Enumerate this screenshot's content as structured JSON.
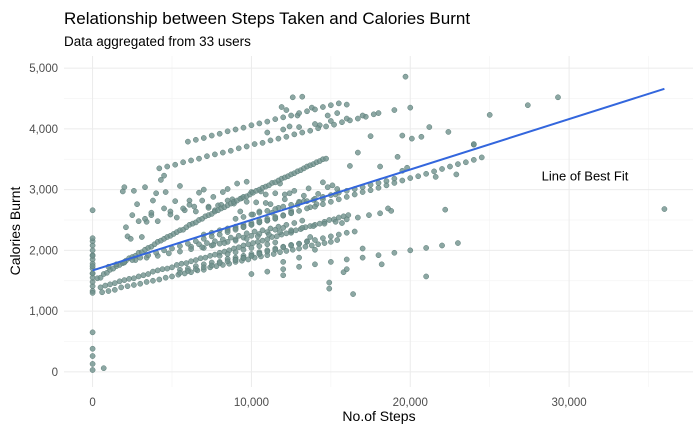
{
  "chart_data": {
    "type": "scatter",
    "title": "Relationship between Steps Taken and Calories Burnt",
    "subtitle": "Data aggregated from 33 users",
    "xlabel": "No.of Steps",
    "ylabel": "Calories Burnt",
    "xlim": [
      -1800,
      37800
    ],
    "ylim": [
      -250,
      5200
    ],
    "x_ticks": [
      0,
      10000,
      20000,
      30000
    ],
    "x_tick_labels": [
      "0",
      "10,000",
      "20,000",
      "30,000"
    ],
    "y_ticks": [
      0,
      1000,
      2000,
      3000,
      4000,
      5000
    ],
    "y_tick_labels": [
      "0",
      "1,000",
      "2,000",
      "3,000",
      "4,000",
      "5,000"
    ],
    "grid": true,
    "point_color": "#6f918c",
    "line_color": "#3366dd",
    "trend_line": {
      "x": [
        0,
        36000
      ],
      "y": [
        1670,
        4660
      ]
    },
    "annotation": {
      "text": "Line of Best Fit",
      "x": 31000,
      "y": 3150
    },
    "points_x": [
      0,
      0,
      0,
      0,
      0,
      0,
      0,
      0,
      0,
      0,
      0,
      0,
      0,
      0,
      0,
      0,
      0,
      0,
      0,
      0,
      0,
      0,
      0,
      700,
      19700,
      36000,
      27400,
      29300,
      15300,
      16200,
      16700,
      17500,
      18100,
      18600,
      19200,
      19800,
      20700,
      21600,
      22200,
      22900,
      24000,
      25000,
      20100,
      21200,
      22400,
      13200,
      13800,
      14300,
      14800,
      15400,
      16000,
      11900,
      12200,
      12600,
      12900,
      12400,
      3300,
      3800,
      4500,
      1900,
      2000,
      2200,
      2400,
      2600,
      2800,
      3100,
      3400,
      3700,
      4000,
      4300,
      4600,
      4900,
      5200,
      5500,
      5800,
      6100,
      6400,
      6700,
      7000,
      7300,
      7600,
      7900,
      8200,
      8500,
      8800,
      9100,
      9400,
      9700,
      10000,
      10300,
      10600,
      10900,
      11200,
      11500,
      11800,
      12100,
      12400,
      12700,
      13000,
      13300,
      13600,
      13900,
      14200,
      14500,
      14800,
      15100,
      15400,
      15700,
      2100,
      2500,
      2900,
      3300,
      3700,
      4100,
      4500,
      4900,
      5300,
      5700,
      6100,
      6500,
      6900,
      7300,
      7700,
      8100,
      8500,
      8900,
      9300,
      9700,
      10100,
      10500,
      10900,
      11300,
      11700,
      12100,
      12500,
      12900,
      13300,
      13700,
      14100,
      14500,
      14900,
      300,
      500,
      700,
      900,
      1100,
      1300,
      1500,
      1700,
      1900,
      2100,
      2300,
      2500,
      2700,
      2900,
      3100,
      3300,
      3500,
      3700,
      3900,
      4100,
      4300,
      4500,
      4700,
      4900,
      5100,
      5300,
      5500,
      5700,
      5900,
      6100,
      6300,
      6500,
      6700,
      6900,
      7100,
      7300,
      7500,
      7700,
      7900,
      8100,
      8300,
      8500,
      8700,
      8900,
      9100,
      9300,
      9500,
      9700,
      9900,
      10100,
      10300,
      10500,
      10700,
      10900,
      11100,
      11300,
      11500,
      11700,
      11900,
      12100,
      12300,
      12500,
      12700,
      12900,
      13100,
      13300,
      13500,
      13700,
      13900,
      14100,
      14300,
      14500,
      14700,
      14900,
      500,
      800,
      1100,
      1400,
      1700,
      2000,
      2300,
      2600,
      2900,
      3200,
      3500,
      3800,
      4100,
      4400,
      4700,
      5000,
      5300,
      5600,
      5900,
      6200,
      6500,
      6800,
      7100,
      7400,
      7700,
      8000,
      8300,
      8600,
      8900,
      9200,
      9500,
      9800,
      10100,
      10400,
      10700,
      11000,
      11300,
      11600,
      11900,
      12200,
      12500,
      12800,
      13100,
      13400,
      13700,
      14000,
      14300,
      14600,
      14900,
      15200,
      15500,
      15800,
      16100,
      16400,
      600,
      1000,
      1400,
      1800,
      2200,
      2600,
      3000,
      3400,
      3800,
      4200,
      4600,
      5000,
      5400,
      5800,
      6200,
      6600,
      7000,
      7400,
      7800,
      8200,
      8600,
      9000,
      9400,
      9800,
      10200,
      10600,
      11000,
      11400,
      11800,
      12200,
      12600,
      13000,
      13400,
      13800,
      14200,
      14600,
      15000,
      15400,
      15800,
      5500,
      6000,
      6500,
      7000,
      7500,
      8000,
      8500,
      9000,
      9500,
      10000,
      10500,
      11000,
      11500,
      12000,
      12500,
      13000,
      13500,
      14000,
      14500,
      15000,
      15500,
      16000,
      16500,
      17000,
      6200,
      6700,
      7200,
      7700,
      8200,
      8700,
      9200,
      9700,
      10200,
      10700,
      11200,
      11700,
      12200,
      12700,
      13200,
      13700,
      7000,
      7500,
      8000,
      8500,
      9000,
      9500,
      10000,
      10500,
      11000,
      11500,
      12000,
      12500,
      13000,
      8000,
      8500,
      9000,
      9500,
      10000,
      10500,
      11000,
      11500,
      12000,
      5500,
      6000,
      6500,
      7000,
      7500,
      8000,
      8500,
      9000,
      9500,
      10000,
      10500,
      11000,
      11500,
      12000,
      12500,
      13000,
      13500,
      14000,
      7000,
      7500,
      8000,
      8500,
      9000,
      9500,
      10000,
      10500,
      11000,
      11500,
      12000,
      12500,
      8500,
      9000,
      9500,
      10000,
      10500,
      11000,
      11500,
      12000,
      9000,
      9500,
      10000,
      10500,
      11000,
      9000,
      9500,
      10000,
      10500,
      11000,
      11500,
      12000,
      12500,
      13000,
      13500,
      14000,
      14500,
      15000,
      15500,
      16000,
      16500,
      17000,
      17500,
      18000,
      18500,
      19000,
      19500,
      4200,
      4700,
      5200,
      5700,
      6200,
      6700,
      7200,
      7700,
      8200,
      8700,
      9200,
      9700,
      10200,
      10700,
      11200,
      11700,
      12200,
      12700,
      13200,
      13700,
      14200,
      14700,
      15200,
      15700,
      16200,
      16700,
      17200,
      17700,
      18200,
      2000,
      2700,
      3400,
      4100,
      4800,
      5500,
      6200,
      6900,
      7600,
      8300,
      9000,
      9700,
      10400,
      11100,
      11800,
      12500,
      13200,
      13900,
      14600,
      15300,
      16000,
      16700,
      17400,
      18100,
      18800,
      19500,
      11000,
      12000,
      13000,
      14000,
      15000,
      16000,
      17000,
      18000,
      19000,
      20000,
      21000,
      10000,
      11000,
      12000,
      13000,
      14000,
      15000,
      16000,
      17000,
      18000,
      19000,
      20000,
      21000,
      22000,
      23000,
      24000,
      6000,
      6500,
      7000,
      7500,
      8000,
      8500,
      9000,
      9500,
      10000,
      10500,
      11000,
      11500,
      12000,
      12500,
      13000,
      13500,
      14000,
      14500,
      15000,
      15500,
      16000,
      1000,
      1500,
      2000,
      2500,
      3000,
      3500,
      4000,
      4500,
      5000,
      5500,
      6000,
      6500,
      7000,
      7500,
      8000,
      8500,
      9000,
      9500,
      10000,
      10500,
      11000,
      11500,
      12000,
      12500,
      13000,
      13500,
      14000,
      14500,
      15000,
      15500,
      16000,
      16500,
      17000,
      17500,
      18000,
      18500,
      19000,
      19500,
      20000,
      20500,
      21000,
      21500,
      22000,
      22500,
      23000,
      23500,
      24000,
      24500,
      25000
    ],
    "points_y": [
      30,
      130,
      260,
      380,
      650,
      1330,
      1410,
      1480,
      1550,
      1620,
      1700,
      1780,
      1850,
      1920,
      2000,
      2080,
      2150,
      2200,
      2660,
      1300,
      1620,
      1740,
      1910,
      60,
      4860,
      2680,
      4390,
      4520,
      2920,
      3390,
      3610,
      3880,
      3380,
      2690,
      3540,
      3360,
      3870,
      3210,
      2670,
      3250,
      3740,
      4230,
      3840,
      4030,
      3950,
      4530,
      4350,
      4060,
      4220,
      4260,
      4400,
      4360,
      4310,
      4520,
      4220,
      4040,
      3040,
      2820,
      3230,
      2970,
      3040,
      2230,
      2190,
      2980,
      2760,
      2220,
      2470,
      2580,
      2940,
      3160,
      2960,
      2640,
      2810,
      3060,
      2660,
      2820,
      2720,
      2950,
      3000,
      2720,
      2880,
      2740,
      2960,
      3010,
      2840,
      3100,
      2860,
      3130,
      2960,
      2790,
      2970,
      2920,
      2760,
      2940,
      3100,
      2920,
      2940,
      2980,
      2800,
      2900,
      3020,
      2830,
      2930,
      3120,
      3040,
      3070,
      3010,
      2450,
      2380,
      2580,
      2480,
      2520,
      2620,
      2480,
      2690,
      2590,
      2540,
      2690,
      2750,
      2640,
      2820,
      2700,
      2660,
      2750,
      2820,
      2770,
      2640,
      2800,
      2590,
      2640,
      2780,
      2620,
      2700,
      2840,
      2650,
      2750,
      2810,
      2710,
      2760,
      2840,
      1470,
      1540,
      1550,
      1610,
      1630,
      1680,
      1700,
      1740,
      1760,
      1790,
      1830,
      1870,
      1890,
      1910,
      1960,
      1970,
      2010,
      2040,
      2060,
      2100,
      2140,
      2160,
      2190,
      2220,
      2240,
      2270,
      2300,
      2330,
      2340,
      2380,
      2420,
      2440,
      2460,
      2500,
      2520,
      2560,
      2580,
      2600,
      2640,
      2660,
      2690,
      2710,
      2740,
      2770,
      2800,
      2820,
      2850,
      2880,
      2890,
      2920,
      2950,
      2980,
      3000,
      3030,
      3050,
      3070,
      3110,
      3120,
      3150,
      3180,
      3200,
      3220,
      3250,
      3270,
      3300,
      3320,
      3350,
      3380,
      3400,
      3420,
      3450,
      3470,
      3500,
      3510,
      1370,
      1390,
      1420,
      1440,
      1460,
      1490,
      1510,
      1530,
      1540,
      1570,
      1590,
      1610,
      1650,
      1670,
      1690,
      1700,
      1720,
      1760,
      1780,
      1790,
      1820,
      1840,
      1870,
      1880,
      1910,
      1930,
      1960,
      1980,
      2000,
      2030,
      2050,
      2080,
      2100,
      2120,
      2140,
      2160,
      2180,
      2220,
      2230,
      2260,
      2280,
      2310,
      2330,
      2350,
      2380,
      2400,
      2420,
      2440,
      2470,
      2500,
      2510,
      2540,
      2560,
      2580,
      1280,
      1310,
      1330,
      1350,
      1390,
      1410,
      1430,
      1450,
      1480,
      1500,
      1520,
      1550,
      1570,
      1600,
      1620,
      1640,
      1670,
      1680,
      1720,
      1740,
      1760,
      1780,
      1810,
      1830,
      1850,
      1880,
      1900,
      1920,
      1940,
      1970,
      1990,
      2010,
      2030,
      2060,
      2080,
      2100,
      2120,
      2140,
      2170,
      1640,
      1680,
      1700,
      1740,
      1770,
      1800,
      1810,
      1860,
      1880,
      1910,
      1940,
      1970,
      2000,
      2030,
      2060,
      2090,
      2110,
      2150,
      2170,
      2200,
      2230,
      2260,
      2290,
      2310,
      2030,
      2060,
      2100,
      2120,
      2150,
      2180,
      2210,
      2240,
      2280,
      2310,
      2330,
      2360,
      2390,
      2420,
      2450,
      2490,
      2220,
      2260,
      2290,
      2330,
      2360,
      2390,
      2420,
      2450,
      2490,
      2520,
      2550,
      2580,
      2620,
      1880,
      1910,
      1940,
      1970,
      2010,
      2040,
      2070,
      2100,
      2130,
      1590,
      1630,
      1660,
      1690,
      1720,
      1750,
      1790,
      1820,
      1850,
      1880,
      1910,
      1950,
      1980,
      2010,
      2050,
      2080,
      2110,
      2140,
      2010,
      2040,
      2080,
      2110,
      2140,
      2180,
      2210,
      2240,
      2270,
      2300,
      2340,
      2370,
      2290,
      2330,
      2360,
      2390,
      2420,
      2460,
      2490,
      2520,
      1810,
      1840,
      1870,
      1910,
      1940,
      2490,
      2520,
      2550,
      2590,
      2620,
      2650,
      2680,
      2720,
      2750,
      2780,
      2810,
      2850,
      2880,
      2910,
      2950,
      2980,
      3010,
      3040,
      3080,
      3110,
      3140,
      3180,
      3310,
      3350,
      3380,
      3410,
      3450,
      3480,
      3510,
      3550,
      3580,
      3610,
      3640,
      3680,
      3710,
      3750,
      3770,
      3810,
      3840,
      3870,
      3910,
      3940,
      3970,
      4010,
      4040,
      4070,
      4110,
      4140,
      4170,
      4200,
      4240,
      1770,
      1810,
      1840,
      1880,
      1910,
      1950,
      1980,
      2020,
      2050,
      2090,
      2120,
      2160,
      2190,
      2230,
      2260,
      2300,
      2330,
      2370,
      2400,
      2440,
      2470,
      2510,
      2540,
      2580,
      2610,
      2650,
      3890,
      3940,
      3990,
      4030,
      4080,
      4130,
      4170,
      4220,
      4260,
      4310,
      4350,
      1570,
      1610,
      1650,
      1690,
      1730,
      1770,
      1810,
      1850,
      1880,
      1920,
      1960,
      2000,
      2040,
      2080,
      2120,
      3750,
      3790,
      3820,
      3850,
      3890,
      3920,
      3960,
      3990,
      4020,
      4060,
      4090,
      4120,
      4160,
      4190,
      4220,
      4260,
      4290,
      4320,
      4360,
      4390,
      4420,
      1690,
      1730,
      1770,
      1800,
      1840,
      1880,
      1920,
      1960,
      2000,
      2030,
      2070,
      2110,
      2150,
      2190,
      2230,
      2260,
      2300,
      2340,
      2380,
      2420,
      2460,
      2490,
      2530,
      2570,
      2610,
      2650,
      2690,
      2720,
      2760,
      2800,
      2840,
      2880,
      2920,
      2960,
      2990,
      3030,
      3070,
      3110,
      3150,
      3190,
      3220,
      3260,
      3300,
      3340,
      3380,
      3420,
      3450,
      3490,
      3530
    ]
  }
}
